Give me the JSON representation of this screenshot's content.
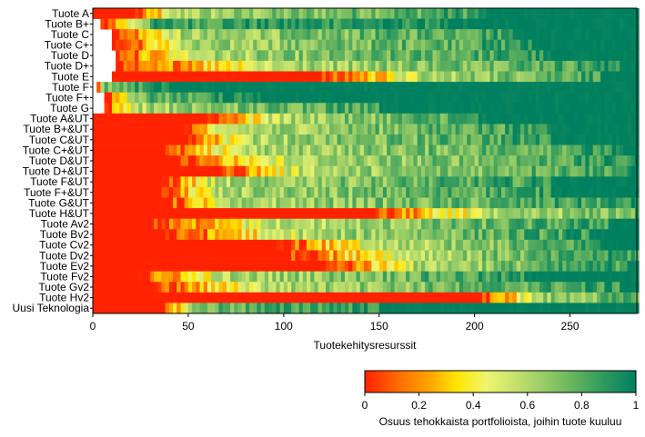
{
  "chart_data": {
    "type": "heatmap",
    "xlabel": "Tuotekehitysresurssit",
    "ylabel": "",
    "xlim": [
      0,
      285
    ],
    "x_ticks": [
      0,
      50,
      100,
      150,
      200,
      250
    ],
    "y_categories": [
      "Tuote A",
      "Tuote B+",
      "Tuote C",
      "Tuote C+",
      "Tuote D",
      "Tuote  D+",
      "Tuote E",
      "Tuote F",
      "Tuote F+",
      "Tuote G",
      "Tuote A&UT",
      "Tuote B+&UT",
      "Tuote C&UT",
      "Tuote C+&UT",
      "Tuote D&UT",
      "Tuote D+&UT",
      "Tuote F&UT",
      "Tuote F+&UT",
      "Tuote G&UT",
      "Tuote H&UT",
      "Tuote Av2",
      "Tuote Bv2",
      "Tuote Cv2",
      "Tuote Dv2",
      "Tuote Ev2",
      "Tuote Fv2",
      "Tuote Gv2",
      "Tuote Hv2",
      "Uusi Teknologia"
    ],
    "value_description": "Osuus tehokkaista portfolioista, joihin tuote kuuluu",
    "color_scale": {
      "range": [
        0,
        1
      ],
      "ticks": [
        0,
        0.2,
        0.4,
        0.6,
        0.8,
        1
      ],
      "stops": [
        {
          "v": 0.0,
          "color": "#ff2200"
        },
        {
          "v": 0.12,
          "color": "#ff6a00"
        },
        {
          "v": 0.25,
          "color": "#ffaa00"
        },
        {
          "v": 0.34,
          "color": "#ffe600"
        },
        {
          "v": 0.45,
          "color": "#eef570"
        },
        {
          "v": 0.6,
          "color": "#b3d96b"
        },
        {
          "v": 0.75,
          "color": "#6fb85f"
        },
        {
          "v": 0.88,
          "color": "#2f9a5e"
        },
        {
          "v": 1.0,
          "color": "#00805f"
        }
      ]
    },
    "row_profiles": [
      {
        "start": 0,
        "red_end": 22,
        "transition_end": 45,
        "mid_end": 205,
        "mid_level": 0.6,
        "tail": 1.0
      },
      {
        "start": 4,
        "red_end": 4,
        "transition_end": 30,
        "mid_end": 200,
        "mid_level": 0.85,
        "tail": 1.0
      },
      {
        "start": 10,
        "red_end": 10,
        "transition_end": 45,
        "mid_end": 220,
        "mid_level": 0.6,
        "tail": 1.0
      },
      {
        "start": 10,
        "red_end": 12,
        "transition_end": 50,
        "mid_end": 230,
        "mid_level": 0.6,
        "tail": 1.0
      },
      {
        "start": 12,
        "red_end": 12,
        "transition_end": 55,
        "mid_end": 240,
        "mid_level": 0.6,
        "tail": 1.0
      },
      {
        "start": 12,
        "red_end": 14,
        "transition_end": 95,
        "mid_end": 275,
        "mid_level": 0.6,
        "tail": 1.0
      },
      {
        "start": 10,
        "red_end": 120,
        "transition_end": 175,
        "mid_end": 265,
        "mid_level": 0.6,
        "tail": 1.0
      },
      {
        "start": 2,
        "red_end": 2,
        "transition_end": 5,
        "mid_end": 40,
        "mid_level": 0.75,
        "tail": 1.0
      },
      {
        "start": 6,
        "red_end": 8,
        "transition_end": 20,
        "mid_end": 90,
        "mid_level": 0.75,
        "tail": 1.0
      },
      {
        "start": 6,
        "red_end": 6,
        "transition_end": 20,
        "mid_end": 150,
        "mid_level": 0.6,
        "tail": 1.0
      },
      {
        "start": 0,
        "red_end": 58,
        "transition_end": 100,
        "mid_end": 205,
        "mid_level": 0.6,
        "tail": 1.0
      },
      {
        "start": 0,
        "red_end": 46,
        "transition_end": 75,
        "mid_end": 240,
        "mid_level": 0.6,
        "tail": 1.0
      },
      {
        "start": 0,
        "red_end": 48,
        "transition_end": 80,
        "mid_end": 240,
        "mid_level": 0.6,
        "tail": 1.0
      },
      {
        "start": 0,
        "red_end": 38,
        "transition_end": 80,
        "mid_end": 280,
        "mid_level": 0.6,
        "tail": 1.0
      },
      {
        "start": 0,
        "red_end": 46,
        "transition_end": 105,
        "mid_end": 285,
        "mid_level": 0.6,
        "tail": 1.0
      },
      {
        "start": 0,
        "red_end": 66,
        "transition_end": 110,
        "mid_end": 285,
        "mid_level": 0.6,
        "tail": 1.0
      },
      {
        "start": 0,
        "red_end": 35,
        "transition_end": 65,
        "mid_end": 240,
        "mid_level": 0.6,
        "tail": 1.0
      },
      {
        "start": 0,
        "red_end": 35,
        "transition_end": 65,
        "mid_end": 240,
        "mid_level": 0.6,
        "tail": 1.0
      },
      {
        "start": 0,
        "red_end": 36,
        "transition_end": 75,
        "mid_end": 285,
        "mid_level": 0.6,
        "tail": 1.0
      },
      {
        "start": 0,
        "red_end": 145,
        "transition_end": 205,
        "mid_end": 285,
        "mid_level": 0.55,
        "tail": 0.85
      },
      {
        "start": 0,
        "red_end": 30,
        "transition_end": 90,
        "mid_end": 270,
        "mid_level": 0.55,
        "tail": 1.0
      },
      {
        "start": 0,
        "red_end": 38,
        "transition_end": 110,
        "mid_end": 260,
        "mid_level": 0.6,
        "tail": 1.0
      },
      {
        "start": 0,
        "red_end": 95,
        "transition_end": 150,
        "mid_end": 265,
        "mid_level": 0.55,
        "tail": 1.0
      },
      {
        "start": 0,
        "red_end": 100,
        "transition_end": 165,
        "mid_end": 285,
        "mid_level": 0.6,
        "tail": 1.0
      },
      {
        "start": 0,
        "red_end": 122,
        "transition_end": 170,
        "mid_end": 280,
        "mid_level": 0.6,
        "tail": 1.0
      },
      {
        "start": 0,
        "red_end": 22,
        "transition_end": 70,
        "mid_end": 230,
        "mid_level": 0.6,
        "tail": 1.0
      },
      {
        "start": 0,
        "red_end": 32,
        "transition_end": 90,
        "mid_end": 275,
        "mid_level": 0.6,
        "tail": 1.0
      },
      {
        "start": 0,
        "red_end": 202,
        "transition_end": 235,
        "mid_end": 285,
        "mid_level": 0.65,
        "tail": 0.85
      },
      {
        "start": 0,
        "red_end": 35,
        "transition_end": 55,
        "mid_end": 150,
        "mid_level": 0.75,
        "tail": 1.0
      }
    ]
  }
}
